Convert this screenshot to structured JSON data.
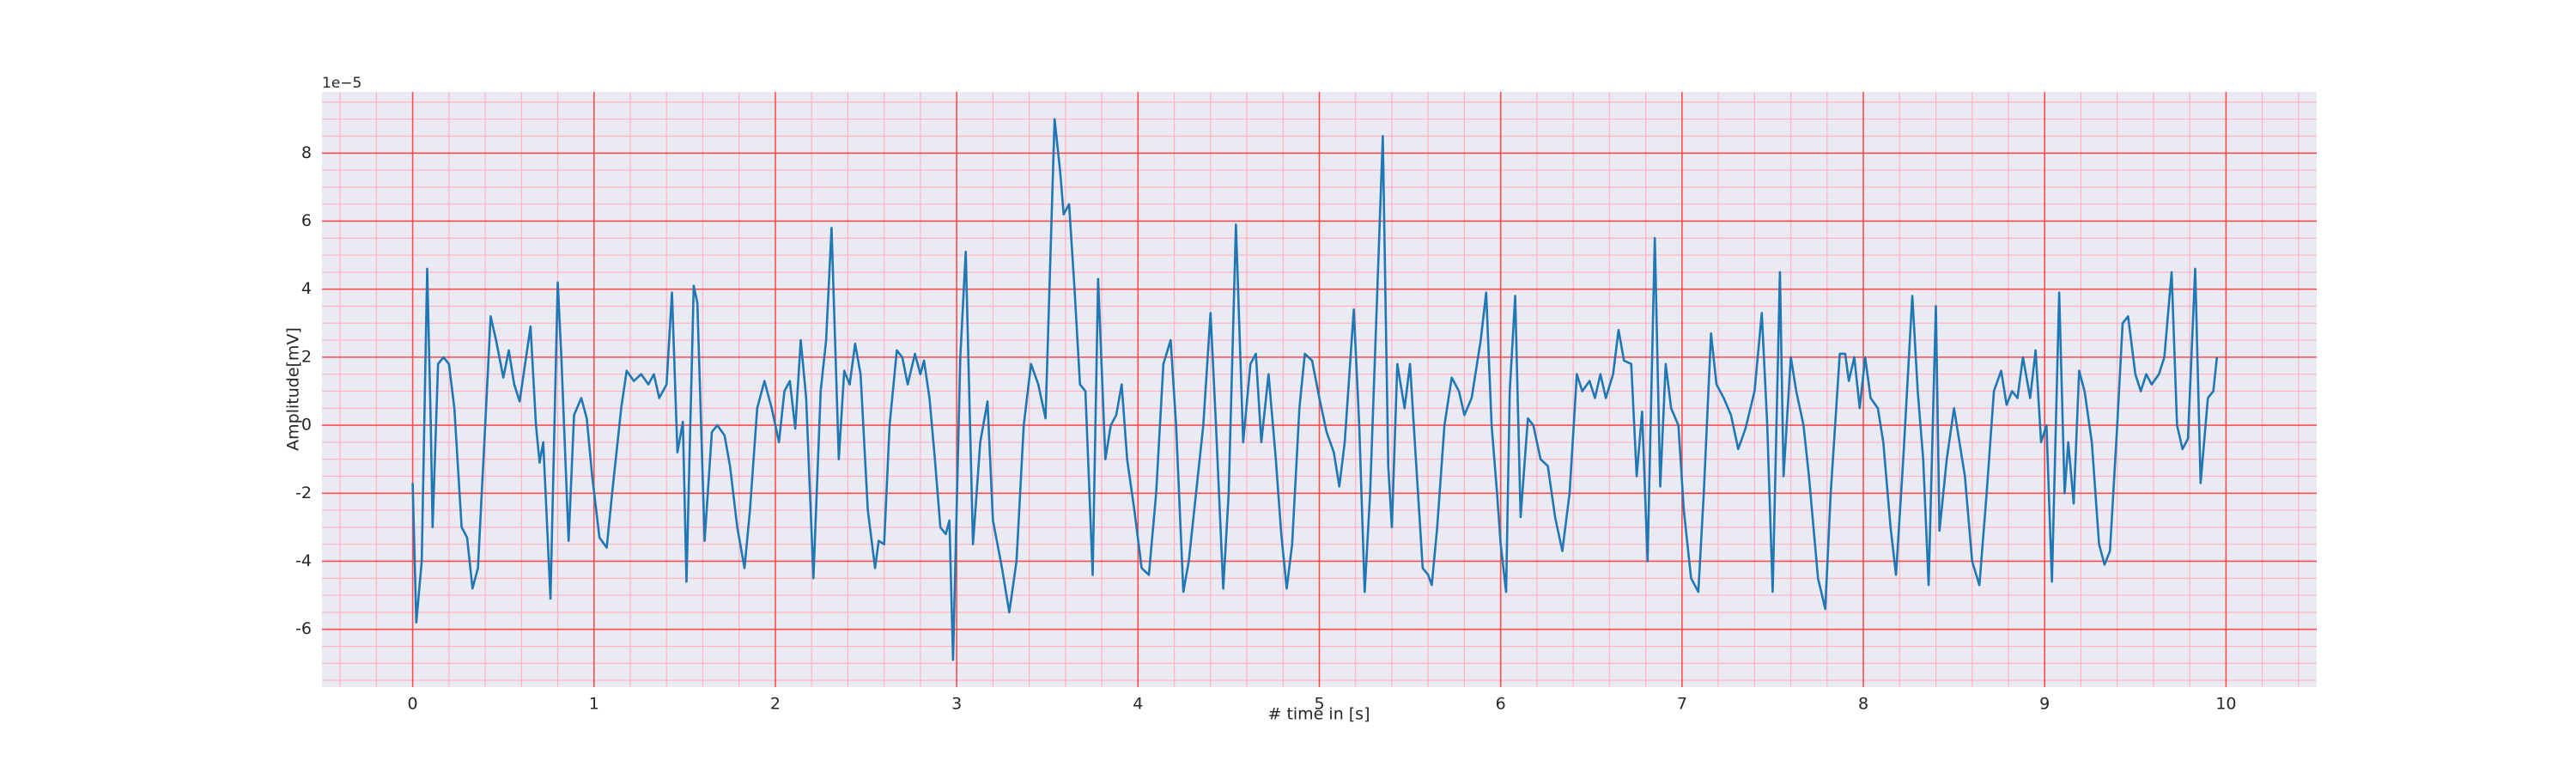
{
  "chart_data": {
    "type": "line",
    "xlabel": "# time in [s]",
    "ylabel": "Amplitude[mV]",
    "offset_text": "1e−5",
    "color": "#1f77b4",
    "background": "#eaeaf2",
    "grid": true,
    "grid_color": "#ff4d4d",
    "minor_grid_color": "#ffb3c1",
    "xlim": [
      -0.5,
      10.5
    ],
    "ylim": [
      -7.7,
      9.8
    ],
    "xticks": [
      0,
      1,
      2,
      3,
      4,
      5,
      6,
      7,
      8,
      9,
      10
    ],
    "yticks": [
      -6,
      -4,
      -2,
      0,
      2,
      4,
      6,
      8
    ],
    "xminor_ticks": [
      -0.4,
      -0.2,
      0.2,
      0.4,
      0.6,
      0.8,
      1.2,
      1.4,
      1.6,
      1.8,
      2.2,
      2.4,
      2.6,
      2.8,
      3.2,
      3.4,
      3.6,
      3.8,
      4.2,
      4.4,
      4.6,
      4.8,
      5.2,
      5.4,
      5.6,
      5.8,
      6.2,
      6.4,
      6.6,
      6.8,
      7.2,
      7.4,
      7.6,
      7.8,
      8.2,
      8.4,
      8.6,
      8.8,
      9.2,
      9.4,
      9.6,
      9.8,
      10.2,
      10.4
    ],
    "yminor_ticks": [
      -7.5,
      -7,
      -6.5,
      -5.5,
      -5,
      -4.5,
      -3.5,
      -3,
      -2.5,
      -1.5,
      -1,
      -0.5,
      0.5,
      1,
      1.5,
      2.5,
      3,
      3.5,
      4.5,
      5,
      5.5,
      6.5,
      7,
      7.5,
      8.5,
      9,
      9.5
    ],
    "x": [
      0.0,
      0.02,
      0.05,
      0.08,
      0.1,
      0.11,
      0.14,
      0.17,
      0.2,
      0.23,
      0.27,
      0.3,
      0.33,
      0.36,
      0.4,
      0.43,
      0.46,
      0.5,
      0.53,
      0.56,
      0.59,
      0.62,
      0.65,
      0.68,
      0.7,
      0.72,
      0.76,
      0.8,
      0.82,
      0.86,
      0.89,
      0.93,
      0.96,
      0.99,
      1.03,
      1.07,
      1.1,
      1.15,
      1.18,
      1.22,
      1.26,
      1.3,
      1.33,
      1.36,
      1.4,
      1.43,
      1.46,
      1.49,
      1.51,
      1.55,
      1.57,
      1.61,
      1.65,
      1.68,
      1.72,
      1.75,
      1.79,
      1.83,
      1.86,
      1.9,
      1.94,
      1.98,
      2.02,
      2.05,
      2.08,
      2.11,
      2.14,
      2.17,
      2.21,
      2.25,
      2.28,
      2.31,
      2.35,
      2.38,
      2.41,
      2.44,
      2.47,
      2.51,
      2.55,
      2.57,
      2.6,
      2.63,
      2.67,
      2.7,
      2.73,
      2.77,
      2.8,
      2.82,
      2.85,
      2.88,
      2.91,
      2.94,
      2.96,
      2.98,
      3.02,
      3.05,
      3.09,
      3.13,
      3.17,
      3.2,
      3.25,
      3.29,
      3.33,
      3.37,
      3.41,
      3.45,
      3.49,
      3.54,
      3.57,
      3.59,
      3.62,
      3.65,
      3.68,
      3.71,
      3.75,
      3.78,
      3.82,
      3.85,
      3.88,
      3.91,
      3.94,
      3.98,
      4.02,
      4.06,
      4.1,
      4.14,
      4.18,
      4.21,
      4.25,
      4.28,
      4.32,
      4.36,
      4.4,
      4.43,
      4.47,
      4.5,
      4.54,
      4.58,
      4.62,
      4.65,
      4.68,
      4.72,
      4.76,
      4.79,
      4.82,
      4.85,
      4.89,
      4.92,
      4.96,
      5.0,
      5.04,
      5.08,
      5.11,
      5.14,
      5.19,
      5.22,
      5.25,
      5.28,
      5.35,
      5.38,
      5.4,
      5.43,
      5.47,
      5.5,
      5.53,
      5.57,
      5.6,
      5.62,
      5.65,
      5.69,
      5.73,
      5.77,
      5.8,
      5.84,
      5.89,
      5.92,
      5.95,
      5.98,
      6.0,
      6.03,
      6.05,
      6.08,
      6.11,
      6.15,
      6.18,
      6.22,
      6.26,
      6.3,
      6.34,
      6.38,
      6.42,
      6.45,
      6.49,
      6.52,
      6.55,
      6.58,
      6.62,
      6.65,
      6.68,
      6.72,
      6.75,
      6.78,
      6.81,
      6.85,
      6.88,
      6.91,
      6.94,
      6.98,
      7.01,
      7.05,
      7.09,
      7.12,
      7.16,
      7.19,
      7.23,
      7.27,
      7.31,
      7.35,
      7.4,
      7.44,
      7.47,
      7.5,
      7.54,
      7.56,
      7.6,
      7.63,
      7.67,
      7.7,
      7.75,
      7.79,
      7.82,
      7.87,
      7.9,
      7.92,
      7.95,
      7.98,
      8.01,
      8.04,
      8.08,
      8.11,
      8.15,
      8.18,
      8.22,
      8.27,
      8.3,
      8.33,
      8.36,
      8.4,
      8.42,
      8.46,
      8.5,
      8.53,
      8.56,
      8.6,
      8.64,
      8.68,
      8.72,
      8.76,
      8.79,
      8.82,
      8.85,
      8.88,
      8.92,
      8.95,
      8.98,
      9.01,
      9.04,
      9.08,
      9.11,
      9.13,
      9.16,
      9.19,
      9.22,
      9.26,
      9.3,
      9.33,
      9.36,
      9.4,
      9.43,
      9.46,
      9.5,
      9.53,
      9.56,
      9.59,
      9.63,
      9.66,
      9.7,
      9.73,
      9.76,
      9.79,
      9.83,
      9.86,
      9.9,
      9.93,
      9.95
    ],
    "values": [
      -1.7,
      -5.8,
      -4,
      4.6,
      0,
      -3.0,
      1.8,
      2.0,
      1.8,
      0.5,
      -3.0,
      -3.3,
      -4.8,
      -4.2,
      0,
      3.2,
      2.5,
      1.4,
      2.2,
      1.2,
      0.7,
      1.8,
      2.9,
      0,
      -1.1,
      -0.5,
      -5.1,
      4.2,
      2,
      -3.4,
      0.3,
      0.8,
      0.2,
      -1.5,
      -3.3,
      -3.6,
      -2,
      0.5,
      1.6,
      1.3,
      1.5,
      1.2,
      1.5,
      0.8,
      1.2,
      3.9,
      -0.8,
      0.1,
      -4.6,
      4.1,
      3.6,
      -3.4,
      -0.2,
      0,
      -0.3,
      -1.2,
      -3.0,
      -4.2,
      -2.5,
      0.5,
      1.3,
      0.5,
      -0.5,
      1.0,
      1.3,
      -0.1,
      2.5,
      0.8,
      -4.5,
      1,
      2.5,
      5.8,
      -1.0,
      1.6,
      1.2,
      2.4,
      1.5,
      -2.5,
      -4.2,
      -3.4,
      -3.5,
      0,
      2.2,
      2.0,
      1.2,
      2.1,
      1.5,
      1.9,
      0.8,
      -1.0,
      -3.0,
      -3.2,
      -2.8,
      -6.9,
      2,
      5.1,
      -3.5,
      -0.5,
      0.7,
      -2.8,
      -4.2,
      -5.5,
      -4,
      0,
      1.8,
      1.2,
      0.2,
      9.0,
      7.5,
      6.2,
      6.5,
      4,
      1.2,
      1.0,
      -4.4,
      4.3,
      -1,
      0,
      0.3,
      1.2,
      -1,
      -2.5,
      -4.2,
      -4.4,
      -2,
      1.8,
      2.5,
      0,
      -4.9,
      -4.0,
      -2,
      0,
      3.3,
      0,
      -4.8,
      -2,
      5.9,
      -0.5,
      1.8,
      2.1,
      -0.5,
      1.5,
      -1.0,
      -3.2,
      -4.8,
      -3.5,
      0.5,
      2.1,
      1.9,
      0.8,
      -0.2,
      -0.8,
      -1.8,
      -0.5,
      3.4,
      0,
      -4.9,
      -2,
      8.5,
      -1.2,
      -3.0,
      1.8,
      0.5,
      1.8,
      -0.8,
      -4.2,
      -4.4,
      -4.7,
      -3,
      0,
      1.4,
      1.0,
      0.3,
      0.8,
      2.5,
      3.9,
      0,
      -2.0,
      -3.5,
      -4.9,
      1,
      3.8,
      -2.7,
      0.2,
      0,
      -1.0,
      -1.2,
      -2.7,
      -3.7,
      -2,
      1.5,
      1.0,
      1.3,
      0.8,
      1.5,
      0.8,
      1.5,
      2.8,
      1.9,
      1.8,
      -1.5,
      0.4,
      -4.0,
      5.5,
      -1.8,
      1.8,
      0.5,
      0.0,
      -2.5,
      -4.5,
      -4.9,
      -2.0,
      2.7,
      1.2,
      0.8,
      0.3,
      -0.7,
      -0.1,
      1.0,
      3.3,
      0,
      -4.9,
      4.5,
      -1.5,
      2.0,
      1.0,
      0,
      -1.5,
      -4.5,
      -5.4,
      -2,
      2.1,
      2.1,
      1.3,
      2.0,
      0.5,
      2.0,
      0.8,
      0.5,
      -0.5,
      -3,
      -4.4,
      -1,
      3.8,
      1,
      -1.0,
      -4.7,
      3.5,
      -3.1,
      -1,
      0.5,
      -0.5,
      -1.5,
      -4.0,
      -4.7,
      -2,
      1.0,
      1.6,
      0.6,
      1.0,
      0.8,
      2.0,
      0.8,
      2.2,
      -0.5,
      0,
      -4.6,
      3.9,
      -2.0,
      -0.5,
      -2.3,
      1.6,
      1.0,
      -0.5,
      -3.5,
      -4.1,
      -3.7,
      0,
      3.0,
      3.2,
      1.5,
      1.0,
      1.5,
      1.2,
      1.5,
      2,
      4.5,
      0,
      -0.7,
      -0.4,
      4.6,
      -1.7,
      0.8,
      1,
      2
    ]
  }
}
